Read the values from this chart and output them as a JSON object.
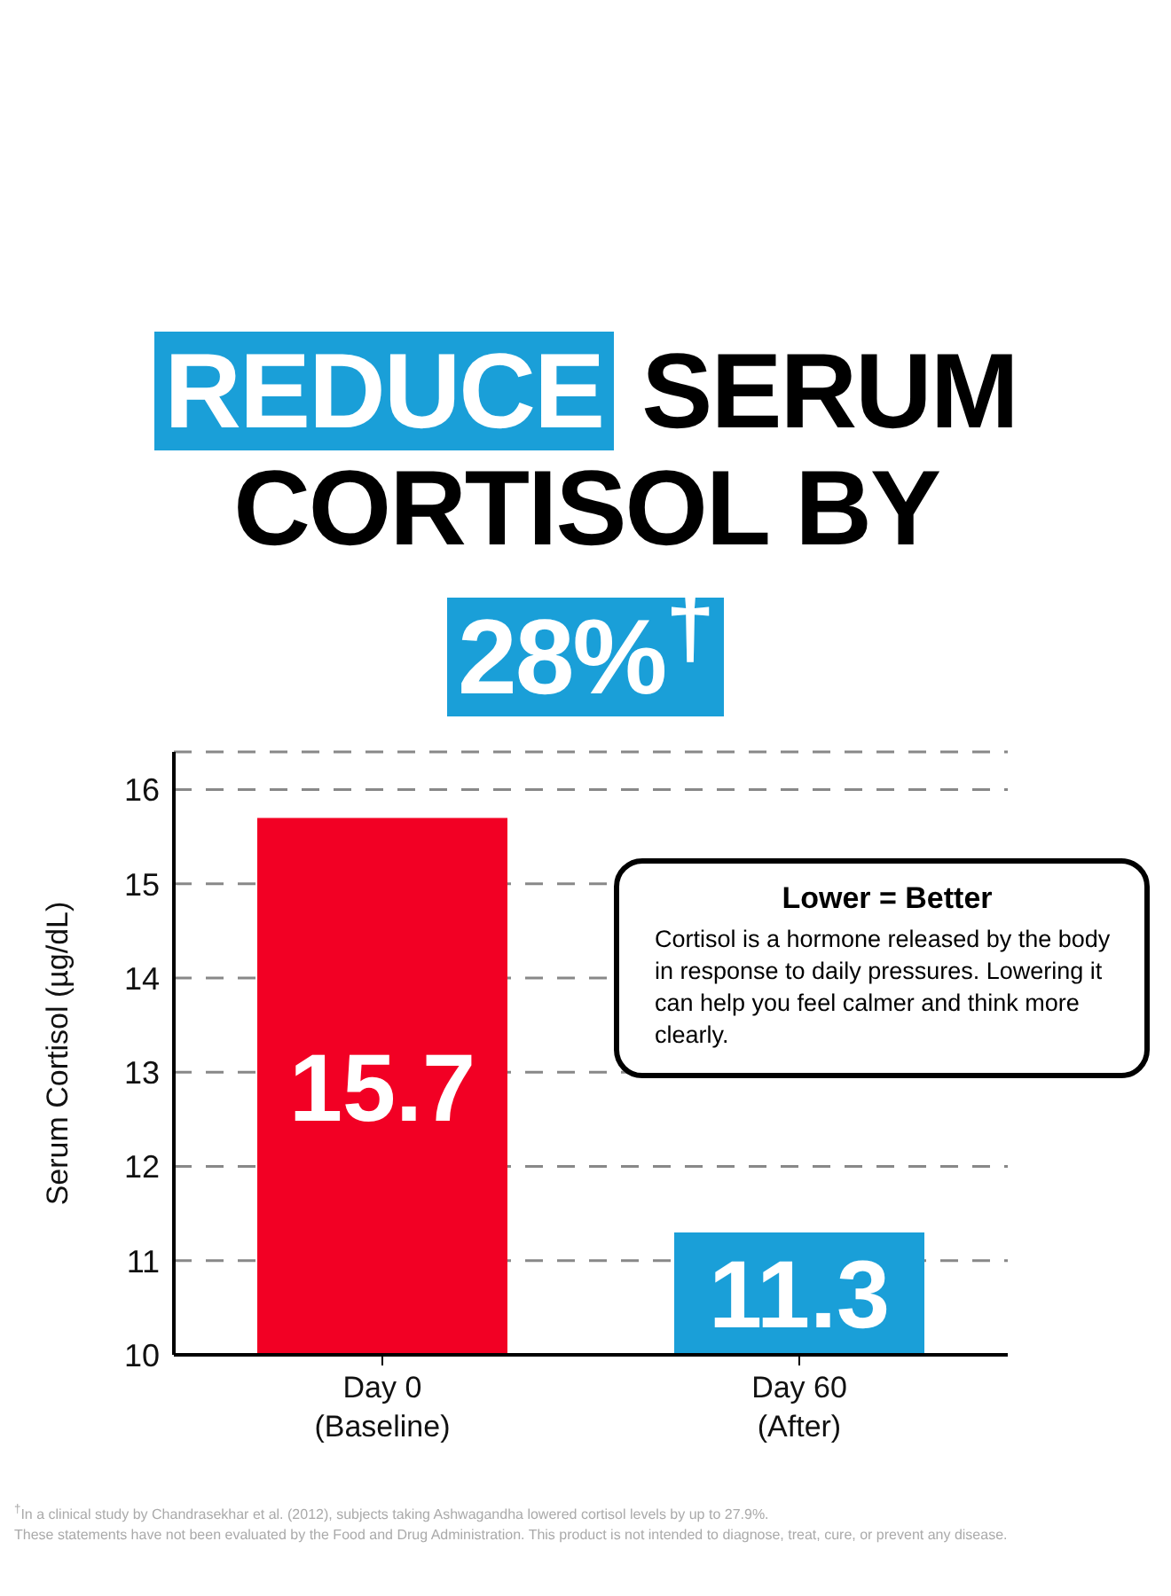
{
  "chart_data": {
    "type": "bar",
    "title": "REDUCE SERUM CORTISOL BY 28%$^{†}$",
    "ylabel": "Serum Cortisol (µg/dL)",
    "categories": [
      "Day 0 (Baseline)",
      "Day 60 (After)"
    ],
    "values": [
      15.7,
      11.3
    ],
    "colors": [
      "#f20024",
      "#1a9fd8"
    ],
    "ylim": [
      10,
      16.4
    ],
    "yticks": [
      10,
      11,
      12,
      13,
      14,
      15,
      16
    ],
    "grid": "y",
    "data_labels": true,
    "annotations": [
      "Lower = Better",
      "Cortisol is a hormone released by the body in response to daily pressures. Lowering it can help you feel calmer and think more clearly.",
      "$^{†}$In a clinical study by Chandrasekhar et al. (2012), subjects taking Ashwagandha lowered cortisol levels by up to 27.9%.",
      "These statements have not been evaluated by the Food and Drug Administration. This product is not intended to diagnose, treat, cure, or prevent any disease."
    ]
  }
}
